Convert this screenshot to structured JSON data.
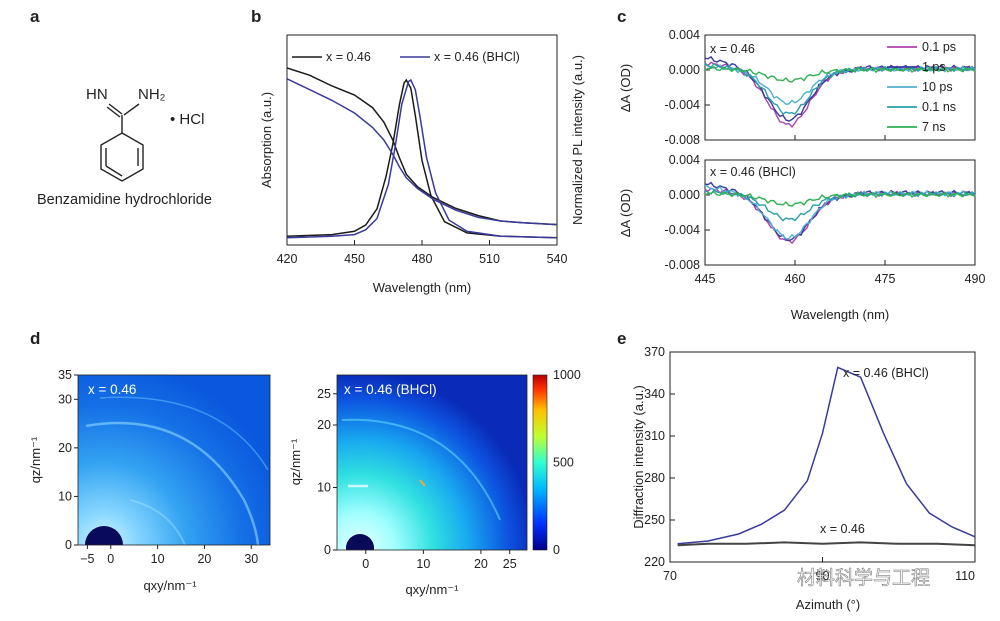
{
  "panel_labels": [
    "a",
    "b",
    "c",
    "d",
    "e"
  ],
  "molecule": {
    "name": "Benzamidine hydrochloride",
    "group_left": "HN",
    "group_right": "NH₂",
    "salt": "• HCl"
  },
  "watermark": "材料科学与工程",
  "chart_data": [
    {
      "id": "b",
      "type": "line",
      "xlabel": "Wavelength (nm)",
      "ylabel_left": "Absorption (a.u.)",
      "ylabel_right": "Normalized PL intensity (a.u.)",
      "xlim": [
        420,
        540
      ],
      "xticks": [
        420,
        450,
        480,
        510,
        540
      ],
      "legend": [
        "x = 0.46",
        "x = 0.46 (BHCl)"
      ],
      "colors": [
        "#1a1a1a",
        "#3a3a9a"
      ],
      "absorption": {
        "x = 0.46": [
          [
            420,
            0.9
          ],
          [
            430,
            0.86
          ],
          [
            440,
            0.8
          ],
          [
            450,
            0.75
          ],
          [
            458,
            0.68
          ],
          [
            463,
            0.6
          ],
          [
            467,
            0.5
          ],
          [
            470,
            0.4
          ],
          [
            473,
            0.31
          ],
          [
            478,
            0.24
          ],
          [
            485,
            0.18
          ],
          [
            495,
            0.12
          ],
          [
            505,
            0.08
          ],
          [
            515,
            0.05
          ],
          [
            525,
            0.04
          ],
          [
            540,
            0.03
          ]
        ],
        "x = 0.46 (BHCl)": [
          [
            420,
            0.84
          ],
          [
            430,
            0.78
          ],
          [
            440,
            0.72
          ],
          [
            450,
            0.65
          ],
          [
            458,
            0.57
          ],
          [
            463,
            0.5
          ],
          [
            467,
            0.42
          ],
          [
            470,
            0.35
          ],
          [
            473,
            0.29
          ],
          [
            478,
            0.23
          ],
          [
            485,
            0.17
          ],
          [
            495,
            0.11
          ],
          [
            505,
            0.07
          ],
          [
            515,
            0.05
          ],
          [
            525,
            0.04
          ],
          [
            540,
            0.03
          ]
        ]
      },
      "pl": {
        "x = 0.46": [
          [
            420,
            0.03
          ],
          [
            440,
            0.04
          ],
          [
            450,
            0.06
          ],
          [
            455,
            0.1
          ],
          [
            460,
            0.2
          ],
          [
            464,
            0.4
          ],
          [
            467,
            0.6
          ],
          [
            470,
            0.85
          ],
          [
            472,
            0.98
          ],
          [
            473,
            1.0
          ],
          [
            475,
            0.95
          ],
          [
            477,
            0.78
          ],
          [
            480,
            0.5
          ],
          [
            484,
            0.28
          ],
          [
            490,
            0.12
          ],
          [
            500,
            0.05
          ],
          [
            515,
            0.03
          ],
          [
            540,
            0.02
          ]
        ],
        "x = 0.46 (BHCl)": [
          [
            420,
            0.02
          ],
          [
            440,
            0.03
          ],
          [
            450,
            0.04
          ],
          [
            455,
            0.07
          ],
          [
            460,
            0.14
          ],
          [
            465,
            0.35
          ],
          [
            468,
            0.58
          ],
          [
            471,
            0.85
          ],
          [
            474,
            0.99
          ],
          [
            475,
            1.0
          ],
          [
            477,
            0.94
          ],
          [
            479,
            0.78
          ],
          [
            482,
            0.52
          ],
          [
            486,
            0.3
          ],
          [
            492,
            0.13
          ],
          [
            500,
            0.06
          ],
          [
            515,
            0.03
          ],
          [
            540,
            0.02
          ]
        ]
      }
    },
    {
      "id": "c",
      "type": "line",
      "xlabel": "Wavelength (nm)",
      "ylabel": "ΔA (OD)",
      "xlim": [
        445,
        490
      ],
      "xticks": [
        445,
        460,
        475,
        490
      ],
      "ylim": [
        -0.008,
        0.004
      ],
      "yticks": [
        "0.004",
        "0.000",
        "-0.004",
        "-0.008"
      ],
      "legend": [
        "0.1 ps",
        "1 ps",
        "10 ps",
        "0.1 ns",
        "7 ns"
      ],
      "colors": [
        "#b040b0",
        "#3a3aa0",
        "#50b0d0",
        "#2aa0a8",
        "#30b050"
      ],
      "subplots": [
        {
          "label": "x = 0.46",
          "minima": [
            -0.0063,
            -0.0057,
            -0.0038,
            -0.005,
            -0.0012
          ],
          "start": [
            0.0008,
            0.0014,
            0.0004,
            0.0006,
            0.0002
          ]
        },
        {
          "label": "x = 0.46 (BHCl)",
          "minima": [
            -0.0053,
            -0.0051,
            -0.0049,
            -0.0028,
            -0.0011
          ],
          "start": [
            0.0007,
            0.0013,
            0.0009,
            0.0004,
            0.0002
          ]
        }
      ]
    },
    {
      "id": "d",
      "type": "heatmap",
      "maps": [
        {
          "label": "x = 0.46",
          "xlabel": "qxy/nm⁻¹",
          "ylabel": "qz/nm⁻¹",
          "xlim": [
            -7,
            34
          ],
          "ylim": [
            0,
            35
          ],
          "xticks": [
            -5,
            0,
            10,
            20,
            30
          ],
          "yticks": [
            0,
            10,
            20,
            30,
            35
          ]
        },
        {
          "label": "x = 0.46 (BHCl)",
          "xlabel": "qxy/nm⁻¹",
          "ylabel": "qz/nm⁻¹",
          "xlim": [
            -5,
            28
          ],
          "ylim": [
            0,
            28
          ],
          "xticks": [
            0,
            10,
            20,
            25
          ],
          "yticks": [
            0,
            10,
            20,
            25
          ]
        }
      ],
      "colorbar": {
        "range": [
          0,
          1000
        ],
        "ticks": [
          0,
          500,
          1000
        ]
      }
    },
    {
      "id": "e",
      "type": "line",
      "xlabel": "Azimuth (°)",
      "ylabel": "Diffraction intensity (a.u.)",
      "xlim": [
        70,
        110
      ],
      "xtick_labels": [
        "70",
        "90",
        "110"
      ],
      "ylim": [
        220,
        370
      ],
      "yticks": [
        220,
        250,
        280,
        310,
        340,
        370
      ],
      "series": [
        {
          "name": "x = 0.46 (BHCl)",
          "color": "#3a3a9a",
          "points": [
            [
              71,
              233
            ],
            [
              75,
              235
            ],
            [
              79,
              240
            ],
            [
              82,
              247
            ],
            [
              85,
              257
            ],
            [
              88,
              278
            ],
            [
              90,
              312
            ],
            [
              92,
              359
            ],
            [
              95,
              352
            ],
            [
              98,
              312
            ],
            [
              101,
              276
            ],
            [
              104,
              255
            ],
            [
              107,
              245
            ],
            [
              110,
              238
            ]
          ]
        },
        {
          "name": "x = 0.46",
          "color": "#444444",
          "points": [
            [
              71,
              232
            ],
            [
              75,
              233
            ],
            [
              80,
              233
            ],
            [
              85,
              234
            ],
            [
              90,
              233
            ],
            [
              95,
              234
            ],
            [
              100,
              233
            ],
            [
              105,
              233
            ],
            [
              110,
              232
            ]
          ]
        }
      ]
    }
  ]
}
